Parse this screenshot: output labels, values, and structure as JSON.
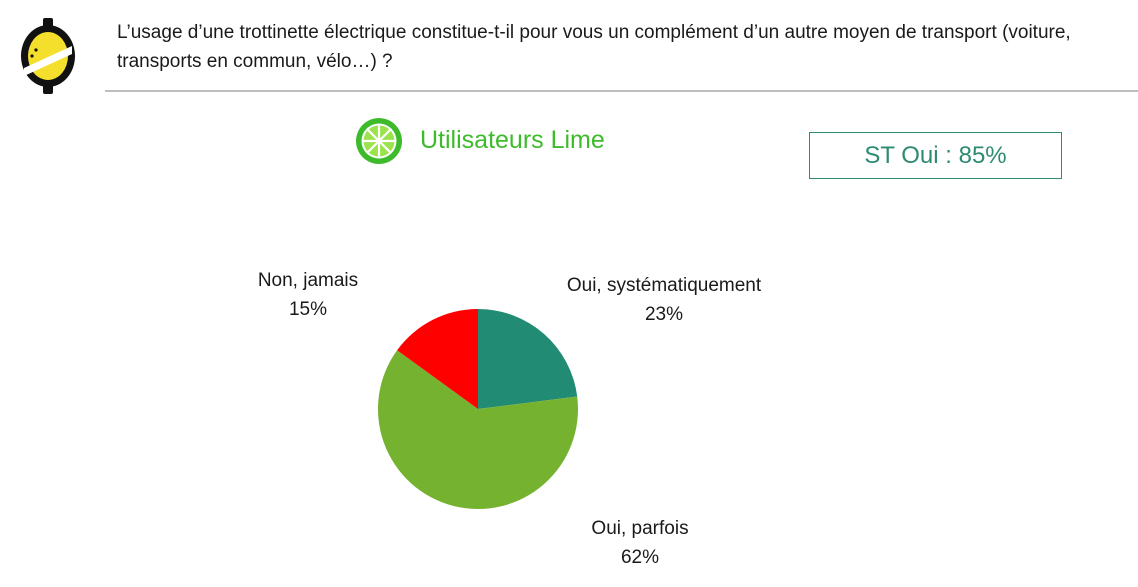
{
  "header": {
    "question": "L’usage d’une trottinette électrique constitue-t-il  pour vous un complément d’un autre moyen de transport (voiture, transports en commun, vélo…) ?",
    "logo_icon": "lime-logo-icon"
  },
  "segment": {
    "title": "Utilisateurs Lime",
    "icon": "lime-slice-icon",
    "color": "#3dbb2b"
  },
  "summary_box": {
    "text": "ST Oui : 85%",
    "color": "#2f8a72"
  },
  "chart_data": {
    "type": "pie",
    "slices": [
      {
        "label": "Oui, systématiquement",
        "value": 23,
        "value_label": "23%",
        "color": "#228b74"
      },
      {
        "label": "Oui, parfois",
        "value": 62,
        "value_label": "62%",
        "color": "#75b22f"
      },
      {
        "label": "Non, jamais",
        "value": 15,
        "value_label": "15%",
        "color": "#ff0000"
      }
    ]
  }
}
